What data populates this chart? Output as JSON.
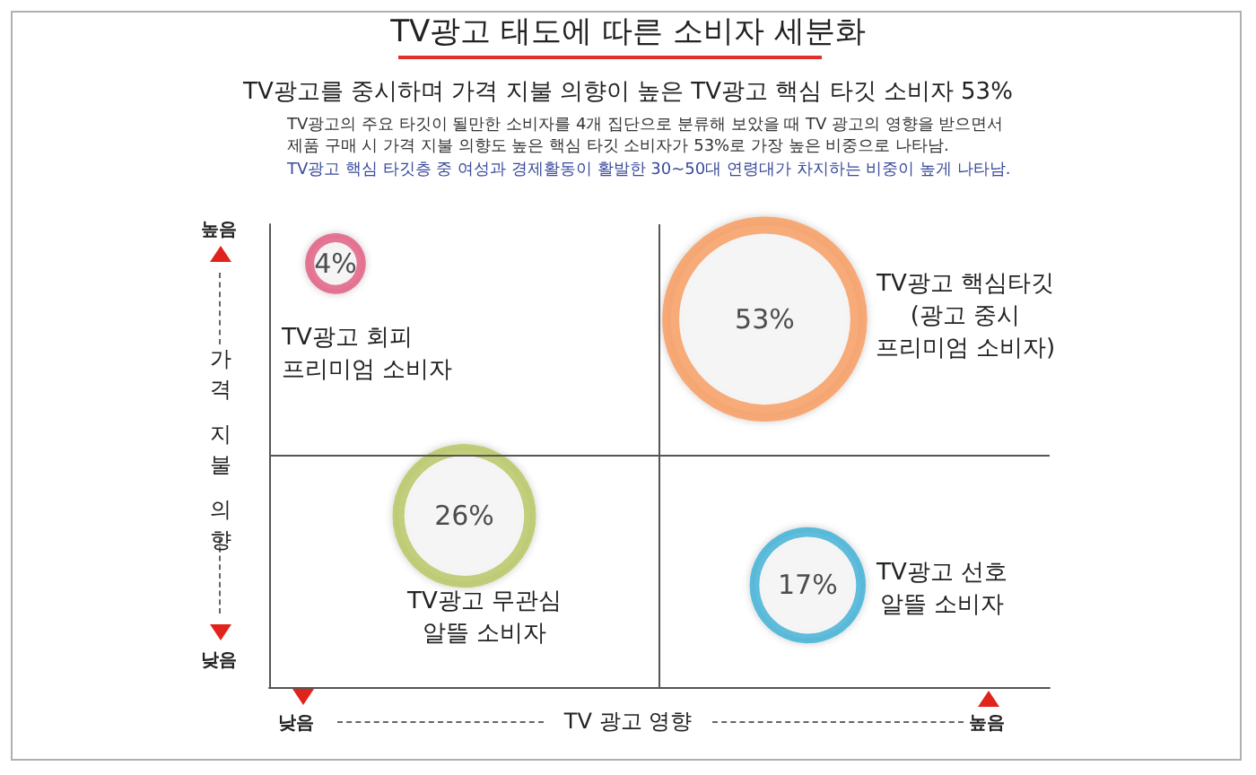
{
  "chart_data": {
    "type": "other",
    "title": "TV광고 태도에 따른 소비자 세분화",
    "subtitle": "TV광고를 중시하며 가격 지불 의향이 높은 TV광고 핵심 타깃 소비자 53%",
    "annotations": [
      "TV광고의 주요 타깃이 될만한 소비자를 4개 집단으로 분류해 보았을 때 TV 광고의 영향을 받으면서\n제품 구매 시 가격 지불 의향도 높은 핵심 타깃 소비자가 53%로 가장 높은 비중으로 나타남.",
      "TV광고 핵심 타깃층 중 여성과 경제활동이 활발한 30~50대 연령대가 차지하는 비중이 높게 나타남.",
      "높음",
      "낮음",
      "낮음",
      "높음"
    ],
    "xlabel": "TV 광고 영향",
    "ylabel": "가격 지불 의향",
    "categories": [
      "TV광고 회피\n프리미엄 소비자",
      "TV광고 핵심타깃\n(광고 중시\n프리미엄 소비자)",
      "TV광고 무관심\n알뜰 소비자",
      "TV광고 선호\n알뜰 소비자"
    ],
    "values": [
      4,
      53,
      26,
      17
    ],
    "value_labels": [
      "4%",
      "53%",
      "26%",
      "17%"
    ],
    "colors": [
      "#e0587c",
      "#f7995a",
      "#b5c45c",
      "#3aaed4"
    ]
  }
}
